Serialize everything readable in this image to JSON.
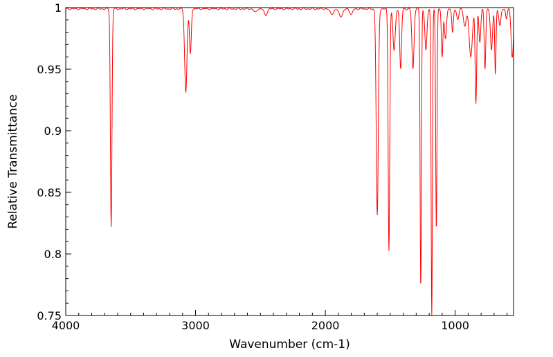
{
  "chart_data": {
    "type": "line",
    "title": "",
    "xlabel": "Wavenumber (cm-1)",
    "ylabel": "Relative Transmittance",
    "xlim": [
      4000,
      550
    ],
    "ylim": [
      0.75,
      1.0
    ],
    "x_reversed": true,
    "grid": false,
    "legend": "none",
    "x_ticks": [
      4000,
      3000,
      2000,
      1000
    ],
    "x_tick_labels": [
      "4000",
      "3000",
      "2000",
      "1000"
    ],
    "y_ticks": [
      0.75,
      0.8,
      0.85,
      0.9,
      0.95,
      1.0
    ],
    "y_tick_labels": [
      "0.75",
      "0.8",
      "0.85",
      "0.9",
      "0.95",
      "1"
    ],
    "series": [
      {
        "color": "#ff0000",
        "baseline": 0.999,
        "peaks": [
          {
            "x": 3650,
            "y": 0.822,
            "w": 6
          },
          {
            "x": 3075,
            "y": 0.931,
            "w": 9
          },
          {
            "x": 3040,
            "y": 0.962,
            "w": 7
          },
          {
            "x": 2460,
            "y": 0.994,
            "w": 12
          },
          {
            "x": 2540,
            "y": 0.996,
            "w": 10
          },
          {
            "x": 1950,
            "y": 0.995,
            "w": 15
          },
          {
            "x": 1880,
            "y": 0.993,
            "w": 15
          },
          {
            "x": 1800,
            "y": 0.994,
            "w": 10
          },
          {
            "x": 1600,
            "y": 0.831,
            "w": 8
          },
          {
            "x": 1510,
            "y": 0.803,
            "w": 6
          },
          {
            "x": 1470,
            "y": 0.965,
            "w": 9
          },
          {
            "x": 1420,
            "y": 0.95,
            "w": 7
          },
          {
            "x": 1325,
            "y": 0.95,
            "w": 8
          },
          {
            "x": 1265,
            "y": 0.772,
            "w": 5
          },
          {
            "x": 1225,
            "y": 0.965,
            "w": 8
          },
          {
            "x": 1180,
            "y": 0.749,
            "w": 5
          },
          {
            "x": 1145,
            "y": 0.819,
            "w": 5
          },
          {
            "x": 1100,
            "y": 0.96,
            "w": 6
          },
          {
            "x": 1075,
            "y": 0.975,
            "w": 8
          },
          {
            "x": 1020,
            "y": 0.979,
            "w": 6
          },
          {
            "x": 980,
            "y": 0.99,
            "w": 8
          },
          {
            "x": 925,
            "y": 0.985,
            "w": 10
          },
          {
            "x": 880,
            "y": 0.96,
            "w": 12
          },
          {
            "x": 840,
            "y": 0.922,
            "w": 6
          },
          {
            "x": 810,
            "y": 0.972,
            "w": 7
          },
          {
            "x": 770,
            "y": 0.95,
            "w": 6
          },
          {
            "x": 720,
            "y": 0.965,
            "w": 8
          },
          {
            "x": 690,
            "y": 0.946,
            "w": 5
          },
          {
            "x": 655,
            "y": 0.985,
            "w": 8
          },
          {
            "x": 605,
            "y": 0.991,
            "w": 6
          },
          {
            "x": 560,
            "y": 0.96,
            "w": 9
          }
        ]
      }
    ]
  }
}
